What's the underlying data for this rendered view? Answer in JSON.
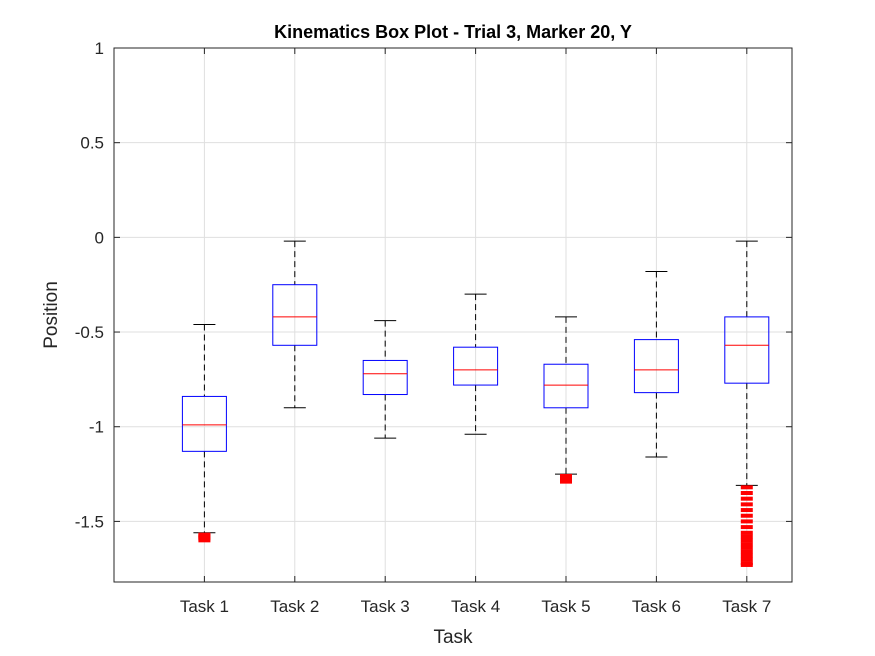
{
  "chart_data": {
    "type": "box",
    "title": "Kinematics Box Plot - Trial 3, Marker 20, Y",
    "xlabel": "Task",
    "ylabel": "Position",
    "ylim": [
      -1.82,
      1
    ],
    "yticks": [
      1,
      0.5,
      0,
      -0.5,
      -1,
      -1.5
    ],
    "ytick_labels": [
      "1",
      "0.5",
      "0",
      "-0.5",
      "-1",
      "-1.5"
    ],
    "grid": true,
    "colors": {
      "box": "#0000ff",
      "median": "#ff0000",
      "whisker": "#000000",
      "outlier": "#ff0000",
      "grid": "#dfdfdf",
      "axes": "#262626"
    },
    "categories": [
      "Task 1",
      "Task 2",
      "Task 3",
      "Task 4",
      "Task 5",
      "Task 6",
      "Task 7"
    ],
    "boxes": [
      {
        "whisker_high": -0.46,
        "q3": -0.84,
        "median": -0.99,
        "q1": -1.13,
        "whisker_low": -1.56,
        "outliers": [
          -1.57,
          -1.575,
          -1.58,
          -1.585,
          -1.59,
          -1.6
        ]
      },
      {
        "whisker_high": -0.02,
        "q3": -0.25,
        "median": -0.42,
        "q1": -0.57,
        "whisker_low": -0.9,
        "outliers": []
      },
      {
        "whisker_high": -0.44,
        "q3": -0.65,
        "median": -0.72,
        "q1": -0.83,
        "whisker_low": -1.06,
        "outliers": []
      },
      {
        "whisker_high": -0.3,
        "q3": -0.58,
        "median": -0.7,
        "q1": -0.78,
        "whisker_low": -1.04,
        "outliers": []
      },
      {
        "whisker_high": -0.42,
        "q3": -0.67,
        "median": -0.78,
        "q1": -0.9,
        "whisker_low": -1.25,
        "outliers": [
          -1.26,
          -1.265,
          -1.27,
          -1.275,
          -1.28,
          -1.285,
          -1.29
        ]
      },
      {
        "whisker_high": -0.18,
        "q3": -0.54,
        "median": -0.7,
        "q1": -0.82,
        "whisker_low": -1.16,
        "outliers": []
      },
      {
        "whisker_high": -0.02,
        "q3": -0.42,
        "median": -0.57,
        "q1": -0.77,
        "whisker_low": -1.31,
        "outliers": [
          -1.32,
          -1.35,
          -1.38,
          -1.41,
          -1.44,
          -1.47,
          -1.5,
          -1.53,
          -1.56,
          -1.58,
          -1.6,
          -1.62,
          -1.64,
          -1.66,
          -1.68,
          -1.7,
          -1.72,
          -1.73
        ]
      }
    ]
  }
}
